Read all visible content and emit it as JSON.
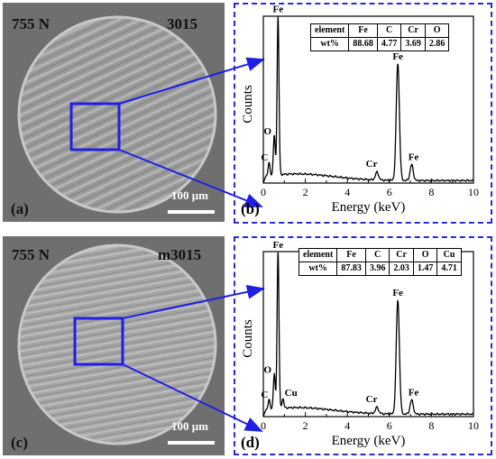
{
  "panels": [
    {
      "id": "a",
      "load": "755 N",
      "sample": "3015",
      "panel_label": "(a)",
      "scale_bar": "100 μm"
    },
    {
      "id": "c",
      "load": "755 N",
      "sample": "m3015",
      "panel_label": "(c)",
      "scale_bar": "100 μm"
    }
  ],
  "colors": {
    "zoom_box": "#1f1fe6",
    "dashed_border": "#2b2bd0",
    "spectrum": "#000000"
  },
  "chart_data": [
    {
      "type": "line",
      "panel_label": "(b)",
      "xlabel": "Energy (keV)",
      "ylabel": "Counts",
      "xlim": [
        0,
        10
      ],
      "x_ticks": [
        "0",
        "2",
        "4",
        "6",
        "8",
        "10"
      ],
      "y_ticks": [],
      "peaks": [
        {
          "label": "C",
          "x": 0.27,
          "y": 8
        },
        {
          "label": "O",
          "x": 0.52,
          "y": 25
        },
        {
          "label": "Fe",
          "x": 0.7,
          "y": 100
        },
        {
          "label": "Cr",
          "x": 5.41,
          "y": 5
        },
        {
          "label": "Fe",
          "x": 6.4,
          "y": 74
        },
        {
          "label": "Fe",
          "x": 7.06,
          "y": 10
        }
      ],
      "table": {
        "headers": [
          "element",
          "Fe",
          "C",
          "Cr",
          "O"
        ],
        "row_label": "wt%",
        "values": [
          "88.68",
          "4.77",
          "3.69",
          "2.86"
        ]
      }
    },
    {
      "type": "line",
      "panel_label": "(d)",
      "xlabel": "Energy (keV)",
      "ylabel": "Counts",
      "xlim": [
        0,
        10
      ],
      "x_ticks": [
        "0",
        "2",
        "4",
        "6",
        "8",
        "10"
      ],
      "y_ticks": [],
      "peaks": [
        {
          "label": "C",
          "x": 0.27,
          "y": 6
        },
        {
          "label": "O",
          "x": 0.52,
          "y": 22
        },
        {
          "label": "Fe",
          "x": 0.7,
          "y": 100
        },
        {
          "label": "Cu",
          "x": 0.93,
          "y": 6
        },
        {
          "label": "Cr",
          "x": 5.41,
          "y": 4
        },
        {
          "label": "Fe",
          "x": 6.4,
          "y": 73
        },
        {
          "label": "Fe",
          "x": 7.06,
          "y": 9
        }
      ],
      "table": {
        "headers": [
          "element",
          "Fe",
          "C",
          "Cr",
          "O",
          "Cu"
        ],
        "row_label": "wt%",
        "values": [
          "87.83",
          "3.96",
          "2.03",
          "1.47",
          "4.71"
        ]
      }
    }
  ]
}
